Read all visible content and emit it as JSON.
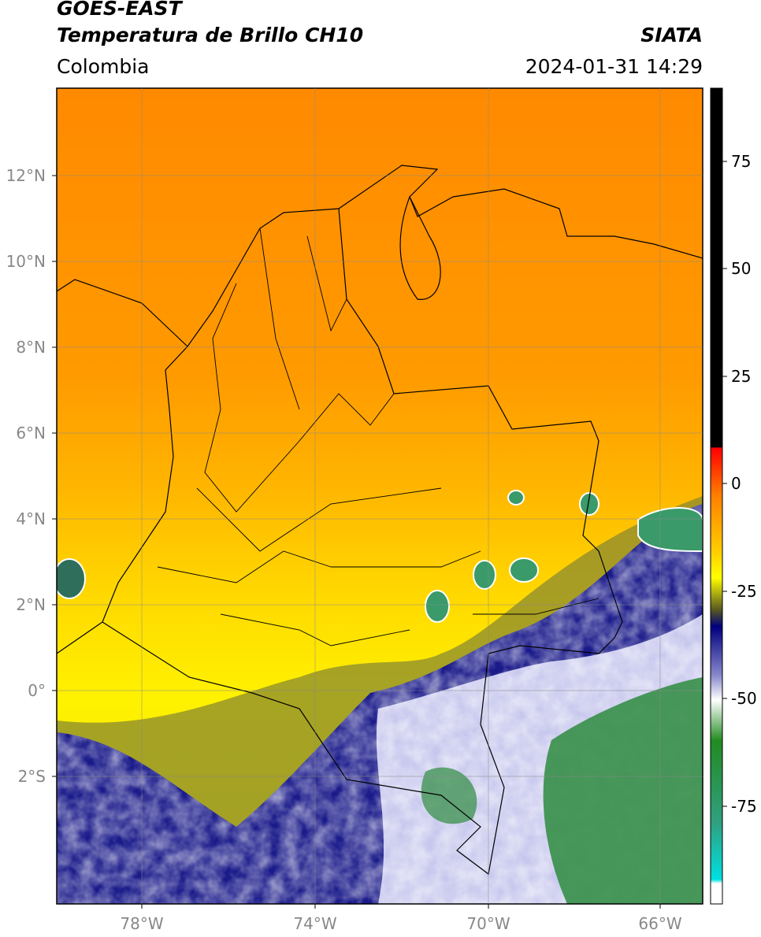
{
  "header": {
    "satellite": "GOES-EAST",
    "product": "Temperatura de Brillo CH10",
    "region": "Colombia",
    "agency": "SIATA",
    "timestamp": "2024-01-31 14:29"
  },
  "map": {
    "x_labels": [
      "78°W",
      "74°W",
      "70°W",
      "66°W"
    ],
    "y_labels": [
      "12°N",
      "10°N",
      "8°N",
      "6°N",
      "4°N",
      "2°N",
      "0°",
      "2°S"
    ]
  },
  "colorbar": {
    "ticks": [
      75,
      50,
      25,
      0,
      -25,
      -50,
      -75
    ]
  }
}
